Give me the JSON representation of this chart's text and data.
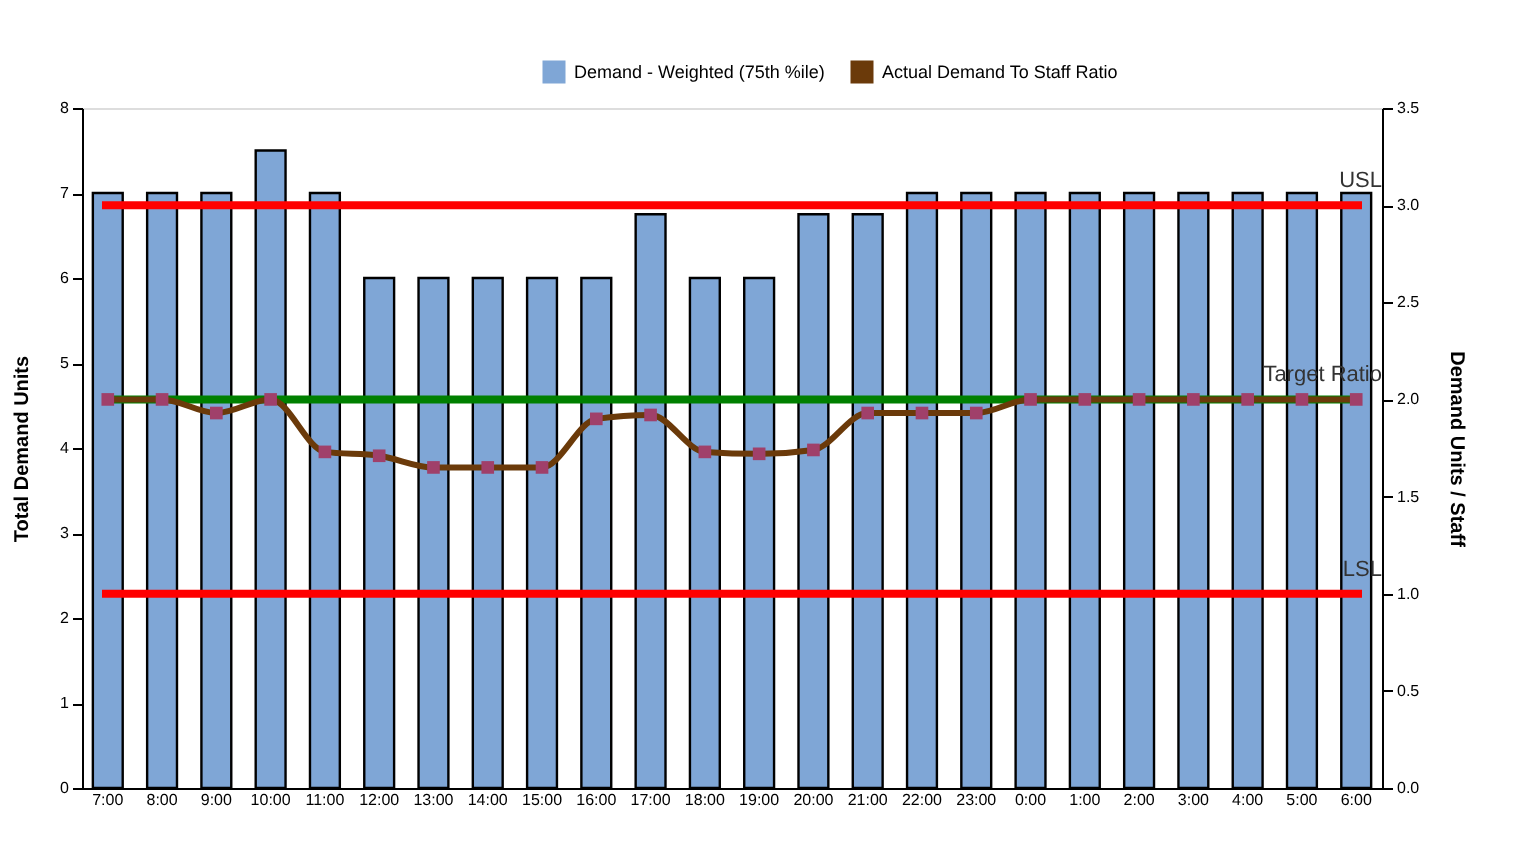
{
  "chart_data": {
    "type": "bar",
    "categories": [
      "7:00",
      "8:00",
      "9:00",
      "10:00",
      "11:00",
      "12:00",
      "13:00",
      "14:00",
      "15:00",
      "16:00",
      "17:00",
      "18:00",
      "19:00",
      "20:00",
      "21:00",
      "22:00",
      "23:00",
      "0:00",
      "1:00",
      "2:00",
      "3:00",
      "4:00",
      "5:00",
      "6:00"
    ],
    "series": [
      {
        "name": "Demand - Weighted (75th %ile)",
        "color": "#7fa6d6",
        "values": [
          7,
          7,
          7,
          7.5,
          7,
          6,
          6,
          6,
          6,
          6,
          6.75,
          6,
          6,
          6.75,
          6.75,
          7,
          7,
          7,
          7,
          7,
          7,
          7,
          7,
          7
        ]
      },
      {
        "name": "Actual Demand To Staff Ratio",
        "type": "line",
        "axis": "y2",
        "color": "#6b3a0a",
        "marker": "square",
        "values": [
          2.0,
          2.0,
          1.93,
          2.0,
          1.73,
          1.71,
          1.65,
          1.65,
          1.65,
          1.9,
          1.92,
          1.73,
          1.72,
          1.74,
          1.93,
          1.93,
          1.93,
          2.0,
          2.0,
          2.0,
          2.0,
          2.0,
          2.0,
          2.0
        ]
      }
    ],
    "ylabel": "Total Demand Units",
    "y2label": "Demand Units / Staff",
    "ylim": [
      0,
      8
    ],
    "yticks": [
      0,
      1,
      2,
      3,
      4,
      5,
      6,
      7,
      8
    ],
    "y2lim": [
      0,
      3.5
    ],
    "y2ticks": [
      {
        "value": 0,
        "label": "0.0"
      },
      {
        "value": 0.5,
        "label": "0.5"
      },
      {
        "value": 1,
        "label": "1.0"
      },
      {
        "value": 1.5,
        "label": "1.5"
      },
      {
        "value": 2,
        "label": "2.0"
      },
      {
        "value": 2.5,
        "label": "2.5"
      },
      {
        "value": 3,
        "label": "3.0"
      },
      {
        "value": 3.5,
        "label": "3.5"
      }
    ],
    "ref_lines": [
      {
        "axis": "y2",
        "value": 3.0,
        "label": "USL",
        "color": "#ff0000"
      },
      {
        "axis": "y2",
        "value": 2.0,
        "label": "Target Ratio",
        "color": "#008000"
      },
      {
        "axis": "y2",
        "value": 1.0,
        "label": "LSL",
        "color": "#ff0000"
      }
    ],
    "legend": "top right",
    "grid": false
  }
}
